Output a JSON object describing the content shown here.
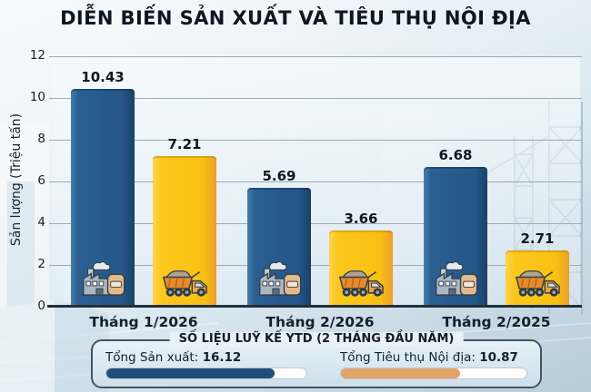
{
  "title": "DIỄN BIẾN SẢN XUẤT VÀ TIÊU THỤ NỘI ĐỊA",
  "chart_data": {
    "type": "bar",
    "categories": [
      "Tháng 1/2026",
      "Tháng 2/2026",
      "Tháng 2/2025"
    ],
    "series": [
      {
        "name": "Sản xuất",
        "icon": "factory",
        "color": "#27598c",
        "values": [
          10.43,
          5.69,
          6.68
        ]
      },
      {
        "name": "Tiêu thụ Nội địa",
        "icon": "dump-truck",
        "color": "#fbc414",
        "values": [
          7.21,
          3.66,
          2.71
        ]
      }
    ],
    "ylabel": "Sản lượng (Triệu tấn)",
    "xlabel": "",
    "ylim": [
      0,
      12
    ],
    "yticks": [
      0,
      2,
      4,
      6,
      8,
      10,
      12
    ],
    "grid": true,
    "legend": "none",
    "value_labels": true
  },
  "summary": {
    "heading": "SỐ LIỆU LUỸ KẾ YTD (2 THÁNG ĐẦU NĂM)",
    "items": [
      {
        "label": "Tổng Sản xuất:",
        "value": "16.12",
        "bar_color": "#1f4e79",
        "fill_percent": 84
      },
      {
        "label": "Tổng Tiêu thụ Nội địa:",
        "value": "10.87",
        "bar_color": "#e2a368",
        "fill_percent": 64
      }
    ]
  }
}
